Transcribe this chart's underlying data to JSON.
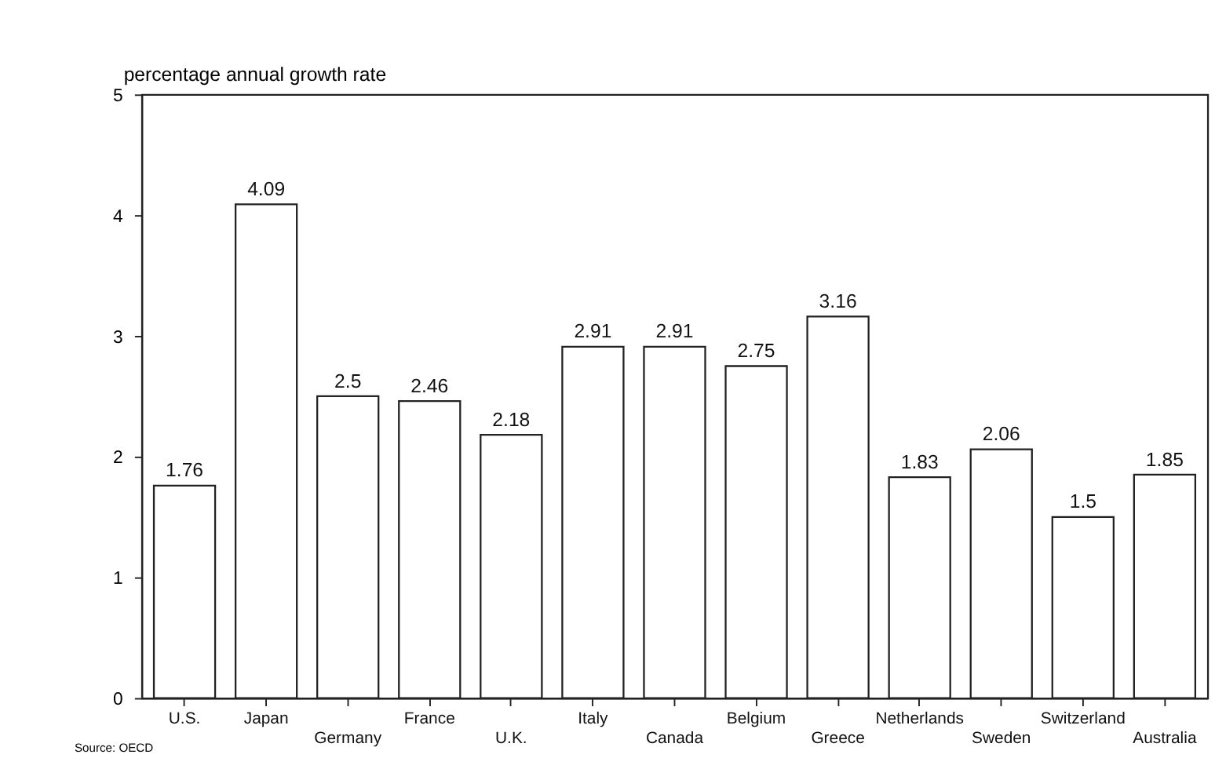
{
  "chart_data": {
    "type": "bar",
    "ylabel": "percentage annual growth rate",
    "categories": [
      "U.S.",
      "Japan",
      "Germany",
      "France",
      "U.K.",
      "Italy",
      "Canada",
      "Belgium",
      "Greece",
      "Netherlands",
      "Sweden",
      "Switzerland",
      "Australia"
    ],
    "values": [
      1.76,
      4.09,
      2.5,
      2.46,
      2.18,
      2.91,
      2.91,
      2.75,
      3.16,
      1.83,
      2.06,
      1.5,
      1.85
    ],
    "color": "#ffffff",
    "data_labels": true,
    "ylim": [
      0,
      5
    ],
    "yticks": [
      0,
      1,
      2,
      3,
      4,
      5
    ],
    "grid": false,
    "annotations": [
      "Source:  OECD"
    ]
  }
}
